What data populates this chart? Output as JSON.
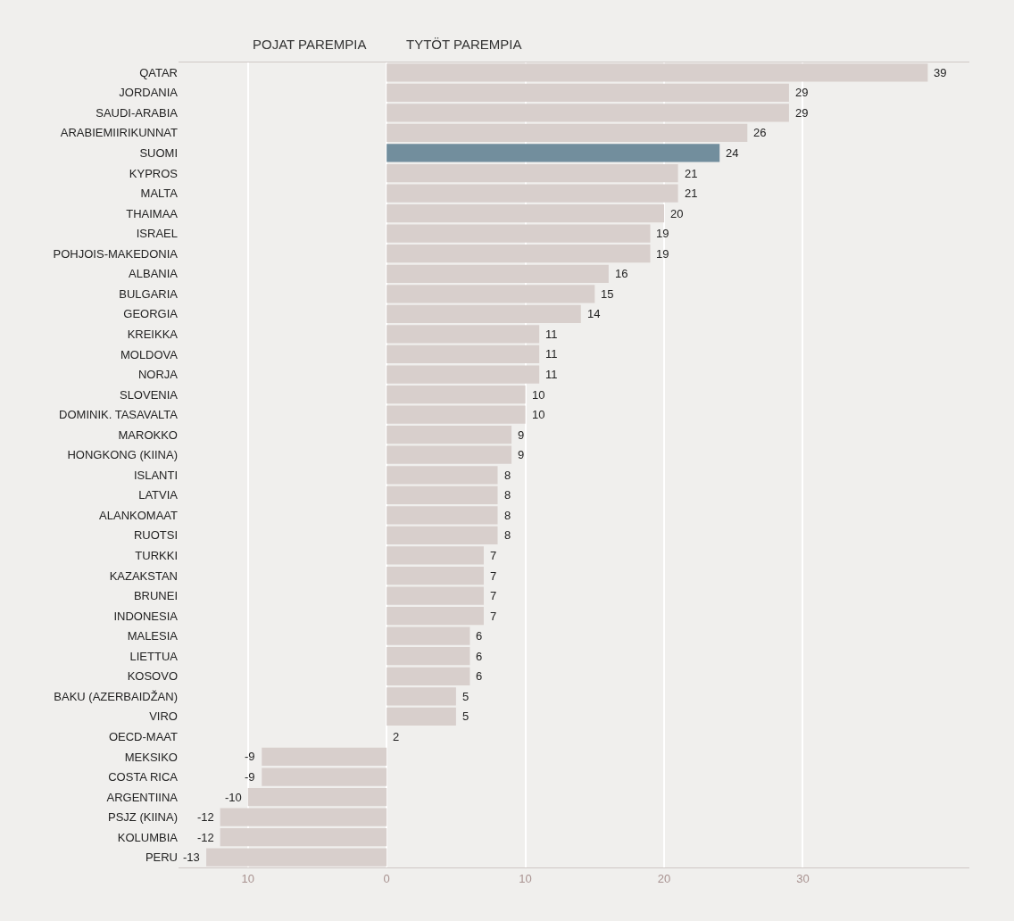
{
  "chart_data": {
    "type": "bar",
    "orientation": "horizontal",
    "annotations": [
      "POJAT PAREMPIA",
      "TYTÖT PAREMPIA"
    ],
    "categories": [
      "QATAR",
      "JORDANIA",
      "SAUDI-ARABIA",
      "ARABIEMIIRIKUNNAT",
      "SUOMI",
      "KYPROS",
      "MALTA",
      "THAIMAA",
      "ISRAEL",
      "POHJOIS-MAKEDONIA",
      "ALBANIA",
      "BULGARIA",
      "GEORGIA",
      "KREIKKA",
      "MOLDOVA",
      "NORJA",
      "SLOVENIA",
      "DOMINIK. TASAVALTA",
      "MAROKKO",
      "HONGKONG (KIINA)",
      "ISLANTI",
      "LATVIA",
      "ALANKOMAAT",
      "RUOTSI",
      "TURKKI",
      "KAZAKSTAN",
      "BRUNEI",
      "INDONESIA",
      "MALESIA",
      "LIETTUA",
      "KOSOVO",
      "BAKU (AZERBAIDŽAN)",
      "VIRO",
      "OECD-MAAT",
      "MEKSIKO",
      "COSTA RICA",
      "ARGENTIINA",
      "PSJZ (KIINA)",
      "KOLUMBIA",
      "PERU"
    ],
    "values": [
      39,
      29,
      29,
      26,
      24,
      21,
      21,
      20,
      19,
      19,
      16,
      15,
      14,
      11,
      11,
      11,
      10,
      10,
      9,
      9,
      8,
      8,
      8,
      8,
      7,
      7,
      7,
      7,
      6,
      6,
      6,
      5,
      5,
      null,
      -9,
      -9,
      -10,
      -12,
      -12,
      -13
    ],
    "value_labels": [
      "39",
      "29",
      "29",
      "26",
      "24",
      "21",
      "21",
      "20",
      "19",
      "19",
      "16",
      "15",
      "14",
      "11",
      "11",
      "11",
      "10",
      "10",
      "9",
      "9",
      "8",
      "8",
      "8",
      "8",
      "7",
      "7",
      "7",
      "7",
      "6",
      "6",
      "6",
      "5",
      "5",
      "2",
      "-9",
      "-9",
      "-10",
      "-12",
      "-12",
      "-13"
    ],
    "colors": [
      "#d8cfcc",
      "#d8cfcc",
      "#d8cfcc",
      "#d8cfcc",
      "#728e9d",
      "#d8cfcc",
      "#d8cfcc",
      "#d8cfcc",
      "#d8cfcc",
      "#d8cfcc",
      "#d8cfcc",
      "#d8cfcc",
      "#d8cfcc",
      "#d8cfcc",
      "#d8cfcc",
      "#d8cfcc",
      "#d8cfcc",
      "#d8cfcc",
      "#d8cfcc",
      "#d8cfcc",
      "#d8cfcc",
      "#d8cfcc",
      "#d8cfcc",
      "#d8cfcc",
      "#d8cfcc",
      "#d8cfcc",
      "#d8cfcc",
      "#d8cfcc",
      "#d8cfcc",
      "#d8cfcc",
      "#d8cfcc",
      "#d8cfcc",
      "#d8cfcc",
      "#d8cfcc",
      "#d8cfcc",
      "#d8cfcc",
      "#d8cfcc",
      "#d8cfcc",
      "#d8cfcc",
      "#d8cfcc"
    ],
    "xlim": [
      -15,
      42
    ],
    "xticks": [
      {
        "value": -10,
        "label": "10"
      },
      0,
      10,
      20,
      30
    ],
    "grid": "x"
  }
}
